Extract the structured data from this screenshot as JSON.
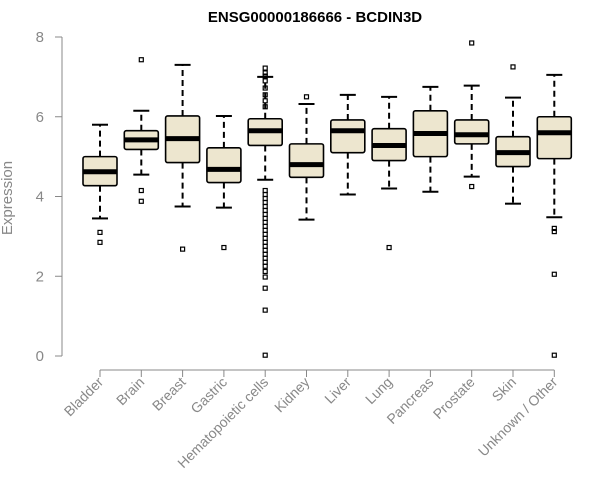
{
  "chart_data": {
    "type": "box",
    "title": "ENSG00000186666 - BCDIN3D",
    "ylabel": "Expression",
    "xlabel": "",
    "ylim": [
      0,
      8
    ],
    "yticks": [
      "0",
      "2",
      "4",
      "6",
      "8"
    ],
    "box_fill": "#ede6cf",
    "categories": [
      "Bladder",
      "Brain",
      "Breast",
      "Gastric",
      "Hematopoietic cells",
      "Kidney",
      "Liver",
      "Lung",
      "Pancreas",
      "Prostate",
      "Skin",
      "Unknown / Other"
    ],
    "boxes": [
      {
        "whisker_low": 3.45,
        "q1": 4.27,
        "median": 4.62,
        "q3": 5.0,
        "whisker_high": 5.8,
        "outliers": [
          3.1,
          2.85
        ]
      },
      {
        "whisker_low": 4.55,
        "q1": 5.18,
        "median": 5.42,
        "q3": 5.65,
        "whisker_high": 6.15,
        "outliers": [
          7.43,
          4.15,
          3.88
        ]
      },
      {
        "whisker_low": 3.75,
        "q1": 4.85,
        "median": 5.45,
        "q3": 6.02,
        "whisker_high": 7.3,
        "outliers": [
          2.68
        ]
      },
      {
        "whisker_low": 3.72,
        "q1": 4.35,
        "median": 4.68,
        "q3": 5.22,
        "whisker_high": 6.02,
        "outliers": [
          2.72
        ]
      },
      {
        "whisker_low": 4.42,
        "q1": 5.28,
        "median": 5.65,
        "q3": 5.95,
        "whisker_high": 7.0,
        "outliers": [
          7.22,
          7.1,
          7.02,
          6.9,
          6.72,
          6.55,
          6.4,
          6.25,
          4.15,
          4.05,
          3.95,
          3.85,
          3.75,
          3.65,
          3.55,
          3.45,
          3.35,
          3.25,
          3.15,
          3.05,
          2.95,
          2.85,
          2.75,
          2.65,
          2.55,
          2.45,
          2.35,
          2.25,
          2.12,
          1.98,
          1.7,
          1.15,
          0.02
        ]
      },
      {
        "whisker_low": 3.42,
        "q1": 4.48,
        "median": 4.8,
        "q3": 5.32,
        "whisker_high": 6.32,
        "outliers": [
          6.5
        ]
      },
      {
        "whisker_low": 4.05,
        "q1": 5.1,
        "median": 5.65,
        "q3": 5.92,
        "whisker_high": 6.55,
        "outliers": []
      },
      {
        "whisker_low": 4.2,
        "q1": 4.9,
        "median": 5.28,
        "q3": 5.7,
        "whisker_high": 6.5,
        "outliers": [
          2.72
        ]
      },
      {
        "whisker_low": 4.12,
        "q1": 5.0,
        "median": 5.58,
        "q3": 6.15,
        "whisker_high": 6.75,
        "outliers": []
      },
      {
        "whisker_low": 4.5,
        "q1": 5.32,
        "median": 5.55,
        "q3": 5.92,
        "whisker_high": 6.78,
        "outliers": [
          7.85,
          4.25
        ]
      },
      {
        "whisker_low": 3.82,
        "q1": 4.75,
        "median": 5.1,
        "q3": 5.5,
        "whisker_high": 6.48,
        "outliers": [
          7.25
        ]
      },
      {
        "whisker_low": 3.48,
        "q1": 4.95,
        "median": 5.6,
        "q3": 6.0,
        "whisker_high": 7.05,
        "outliers": [
          3.2,
          3.12,
          2.05,
          0.02
        ]
      }
    ]
  }
}
